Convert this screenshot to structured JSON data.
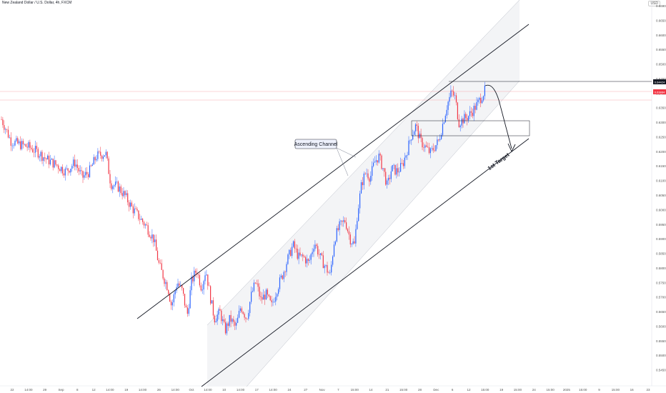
{
  "header": {
    "symbol_title": "New Zealand Dollar / U.S. Dollar, 4h, FXCM",
    "currency": "USD"
  },
  "annotations": {
    "channel_label": "Ascending Channel",
    "target_label": "1st Target"
  },
  "price_badges": {
    "upper": {
      "value": "0.64424",
      "color": "#131722"
    },
    "current": {
      "value": "0.63884",
      "color": "#f23645"
    }
  },
  "colors": {
    "up": "#2962ff",
    "down": "#f23645",
    "channel_fill": "#f2f3f5",
    "line": "#131722",
    "reference_line": "#f7a9b0"
  },
  "chart_data": {
    "type": "candlestick",
    "symbol": "NZDUSD",
    "timeframe": "4h",
    "y_ticks": [
      "0.66900",
      "0.66500",
      "0.66000",
      "0.65500",
      "0.65000",
      "0.64500",
      "0.64000",
      "0.63500",
      "0.63000",
      "0.62500",
      "0.62000",
      "0.61500",
      "0.61000",
      "0.60500",
      "0.60000",
      "0.59500",
      "0.59000",
      "0.58500",
      "0.58000",
      "0.57500",
      "0.57000",
      "0.56500",
      "0.56000",
      "0.55500",
      "0.55000",
      "0.54500"
    ],
    "x_ticks": [
      "22",
      "14:00",
      "29",
      "Sep",
      "8",
      "12",
      "14:00",
      "19",
      "14:00",
      "26",
      "14:00",
      "Oct",
      "14:00",
      "10",
      "14:00",
      "17",
      "14:00",
      "24",
      "27",
      "Nov",
      "7",
      "15:00",
      "14",
      "21",
      "15:00",
      "28",
      "Dec",
      "6",
      "12",
      "15:00",
      "19",
      "15:00",
      "24",
      "15:00",
      "2025",
      "15:00",
      "9",
      "15:00",
      "16",
      "23"
    ],
    "ylim": [
      0.544,
      0.67
    ],
    "price_path": [
      [
        0,
        0.632
      ],
      [
        8,
        0.628
      ],
      [
        15,
        0.624
      ],
      [
        25,
        0.623
      ],
      [
        40,
        0.622
      ],
      [
        55,
        0.62
      ],
      [
        65,
        0.618
      ],
      [
        80,
        0.616
      ],
      [
        92,
        0.614
      ],
      [
        105,
        0.617
      ],
      [
        115,
        0.612
      ],
      [
        125,
        0.614
      ],
      [
        135,
        0.619
      ],
      [
        148,
        0.62
      ],
      [
        155,
        0.61
      ],
      [
        165,
        0.609
      ],
      [
        175,
        0.606
      ],
      [
        185,
        0.602
      ],
      [
        195,
        0.599
      ],
      [
        205,
        0.596
      ],
      [
        215,
        0.592
      ],
      [
        222,
        0.584
      ],
      [
        228,
        0.58
      ],
      [
        235,
        0.576
      ],
      [
        240,
        0.57
      ],
      [
        248,
        0.578
      ],
      [
        255,
        0.575
      ],
      [
        262,
        0.567
      ],
      [
        268,
        0.578
      ],
      [
        275,
        0.582
      ],
      [
        282,
        0.576
      ],
      [
        288,
        0.582
      ],
      [
        295,
        0.572
      ],
      [
        300,
        0.566
      ],
      [
        308,
        0.568
      ],
      [
        315,
        0.562
      ],
      [
        322,
        0.566
      ],
      [
        330,
        0.563
      ],
      [
        337,
        0.57
      ],
      [
        345,
        0.566
      ],
      [
        352,
        0.574
      ],
      [
        358,
        0.578
      ],
      [
        365,
        0.572
      ],
      [
        372,
        0.574
      ],
      [
        380,
        0.57
      ],
      [
        388,
        0.576
      ],
      [
        395,
        0.58
      ],
      [
        402,
        0.585
      ],
      [
        410,
        0.59
      ],
      [
        418,
        0.586
      ],
      [
        425,
        0.586
      ],
      [
        432,
        0.584
      ],
      [
        440,
        0.591
      ],
      [
        448,
        0.586
      ],
      [
        455,
        0.583
      ],
      [
        462,
        0.58
      ],
      [
        468,
        0.592
      ],
      [
        475,
        0.596
      ],
      [
        483,
        0.598
      ],
      [
        490,
        0.592
      ],
      [
        496,
        0.59
      ],
      [
        500,
        0.6
      ],
      [
        506,
        0.61
      ],
      [
        512,
        0.614
      ],
      [
        518,
        0.612
      ],
      [
        524,
        0.617
      ],
      [
        530,
        0.619
      ],
      [
        536,
        0.615
      ],
      [
        542,
        0.609
      ],
      [
        548,
        0.615
      ],
      [
        556,
        0.614
      ],
      [
        563,
        0.616
      ],
      [
        570,
        0.621
      ],
      [
        576,
        0.626
      ],
      [
        582,
        0.629
      ],
      [
        588,
        0.624
      ],
      [
        595,
        0.622
      ],
      [
        602,
        0.62
      ],
      [
        608,
        0.622
      ],
      [
        614,
        0.624
      ],
      [
        620,
        0.63
      ],
      [
        626,
        0.636
      ],
      [
        632,
        0.64
      ],
      [
        637,
        0.638
      ],
      [
        642,
        0.63
      ],
      [
        648,
        0.631
      ],
      [
        655,
        0.632
      ],
      [
        662,
        0.634
      ],
      [
        668,
        0.636
      ],
      [
        675,
        0.639
      ],
      [
        680,
        0.641
      ]
    ],
    "channel_upper_line": [
      [
        192,
        0.57
      ],
      [
        740,
        0.664
      ]
    ],
    "channel_lower_line": [
      [
        282,
        0.544
      ],
      [
        740,
        0.625
      ]
    ],
    "resistance_level": 0.6442,
    "current_price": 0.6388
  }
}
